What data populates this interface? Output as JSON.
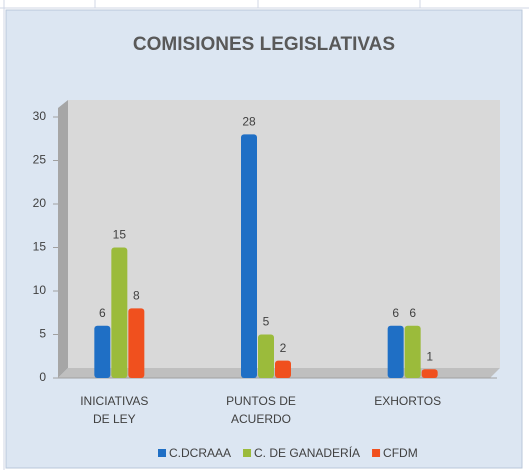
{
  "chart_data": {
    "type": "bar",
    "title": "COMISIONES LEGISLATIVAS",
    "categories": [
      "INICIATIVAS DE LEY",
      "PUNTOS DE ACUERDO",
      "EXHORTOS"
    ],
    "series": [
      {
        "name": "C.DCRAAA",
        "color": "#1f6fc5",
        "values": [
          6,
          28,
          6
        ]
      },
      {
        "name": "C. DE GANADERÍA",
        "color": "#9bbb3b",
        "values": [
          15,
          5,
          6
        ]
      },
      {
        "name": "CFDM",
        "color": "#f0501e",
        "values": [
          8,
          2,
          1
        ]
      }
    ],
    "ylim": [
      0,
      30
    ],
    "yticks": [
      0,
      5,
      10,
      15,
      20,
      25,
      30
    ],
    "grid": false
  }
}
